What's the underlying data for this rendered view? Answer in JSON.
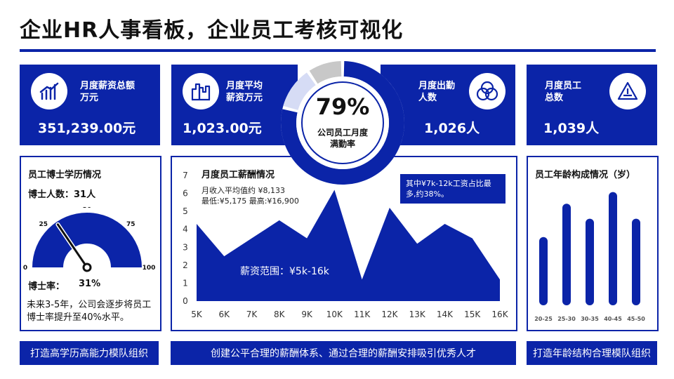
{
  "header": {
    "title": "企业HR人事看板，企业员工考核可视化"
  },
  "colors": {
    "primary": "#0b24a8",
    "light": "#d6dcf5",
    "grey": "#c8c8c8"
  },
  "kpis": [
    {
      "label": "月度薪资总额\n万元",
      "value": "351,239.00元",
      "icon": "bar-chart-icon"
    },
    {
      "label": "月度平均\n薪资万元",
      "value": "1,023.00元",
      "icon": "buildings-icon"
    },
    {
      "label": "月度出勤\n人数",
      "value": "1,026人",
      "icon": "rings-icon"
    },
    {
      "label": "月度员工\n总数",
      "value": "1,039人",
      "icon": "triangle-icon"
    }
  ],
  "attendance": {
    "percent_text": "79%",
    "rate": 0.79,
    "label": "公司员工月度\n满勤率"
  },
  "phd": {
    "title": "员工博士学历情况",
    "count_label": "博士人数：31人",
    "rate_label": "博士率：",
    "rate_value": "31%",
    "note": "未来3-5年，公司会逐步将员工博士率提升至40%水平。",
    "footer": "打造高学历高能力模队组织",
    "gauge": {
      "ticks": [
        "0",
        "25",
        "50",
        "75",
        "100"
      ],
      "value": 31,
      "min": 0,
      "max": 100
    }
  },
  "salary": {
    "title": "月度员工薪酬情况",
    "stats_line1": "月收入平均值约 ¥8,133",
    "stats_line2": "最低:¥5,175 最高:¥16,900",
    "annotation": "其中¥7k-12k工资占比最多,约38%。",
    "range_label": "薪资范围：¥5k-16k",
    "footer": "创建公平合理的薪酬体系、通过合理的薪酬安排吸引优秀人才"
  },
  "age": {
    "title": "员工年龄构成情况（岁）",
    "footer": "打造年龄结构合理模队组织"
  },
  "chart_data": [
    {
      "type": "area",
      "title": "月度员工薪酬情况",
      "x": [
        "5K",
        "6K",
        "7K",
        "8K",
        "9K",
        "10K",
        "11K",
        "12K",
        "13K",
        "14K",
        "15K",
        "16K"
      ],
      "values": [
        4.3,
        2.5,
        3.5,
        4.5,
        3.5,
        6.2,
        1.2,
        5.2,
        3.2,
        4.3,
        3.5,
        1.2
      ],
      "ylim": [
        0,
        7
      ],
      "yticks": [
        "0",
        "1",
        "2",
        "3",
        "4",
        "5",
        "6",
        "7"
      ],
      "grid": false
    },
    {
      "type": "bar",
      "title": "员工年龄构成情况（岁）",
      "categories": [
        "20-25",
        "25-30",
        "30-35",
        "40-45",
        "45-50"
      ],
      "values": [
        4.1,
        6.1,
        5.2,
        6.8,
        5.2
      ],
      "ylim": [
        0,
        7.5
      ],
      "grid": false
    },
    {
      "type": "gauge",
      "title": "员工博士学历情况",
      "value": 31,
      "range": [
        0,
        100
      ]
    }
  ]
}
